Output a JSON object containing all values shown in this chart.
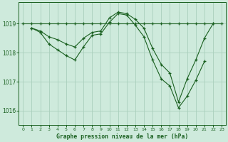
{
  "title": "Graphe pression niveau de la mer (hPa)",
  "background_color": "#ceeadc",
  "grid_color": "#aacfbc",
  "line_color": "#1a6020",
  "xlim": [
    -0.5,
    23.5
  ],
  "ylim": [
    1015.5,
    1019.75
  ],
  "yticks": [
    1016,
    1017,
    1018,
    1019
  ],
  "xticks": [
    0,
    1,
    2,
    3,
    4,
    5,
    6,
    7,
    8,
    9,
    10,
    11,
    12,
    13,
    14,
    15,
    16,
    17,
    18,
    19,
    20,
    21,
    22,
    23
  ],
  "series": [
    {
      "x": [
        0,
        1,
        2,
        3,
        4,
        5,
        6,
        7,
        8,
        9,
        10,
        11,
        12,
        13,
        14,
        15,
        16,
        17,
        18,
        19,
        20,
        21,
        22,
        23
      ],
      "y": [
        1019.0,
        1019.0,
        1019.0,
        1019.0,
        1019.0,
        1019.0,
        1019.0,
        1019.0,
        1019.0,
        1019.0,
        1019.0,
        1019.0,
        1019.0,
        1019.0,
        1019.0,
        1019.0,
        1019.0,
        1019.0,
        1019.0,
        1019.0,
        1019.0,
        1019.0,
        1019.0,
        1019.0
      ]
    },
    {
      "x": [
        1,
        2,
        3,
        4,
        5,
        6,
        7,
        8,
        9,
        10,
        11,
        12,
        13,
        14,
        15,
        16,
        17,
        18,
        19,
        20,
        21,
        22
      ],
      "y": [
        1018.85,
        1018.75,
        1018.55,
        1018.45,
        1018.3,
        1018.2,
        1018.5,
        1018.7,
        1018.75,
        1019.2,
        1019.4,
        1019.35,
        1019.15,
        1018.85,
        1018.15,
        1017.6,
        1017.3,
        1016.3,
        1017.1,
        1017.75,
        1018.5,
        1019.0
      ]
    },
    {
      "x": [
        1,
        2,
        3,
        4,
        5,
        6,
        7,
        8,
        9,
        10,
        11,
        12,
        13,
        14,
        15,
        16,
        17,
        18,
        19,
        20,
        21
      ],
      "y": [
        1018.85,
        1018.7,
        1018.3,
        1018.1,
        1017.9,
        1017.75,
        1018.2,
        1018.6,
        1018.65,
        1019.05,
        1019.35,
        1019.3,
        1018.95,
        1018.55,
        1017.75,
        1017.1,
        1016.85,
        1016.1,
        1016.5,
        1017.05,
        1017.7
      ]
    }
  ]
}
